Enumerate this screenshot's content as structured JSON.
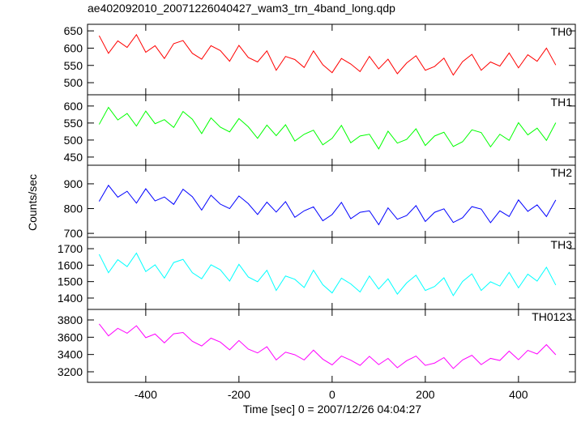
{
  "title": "ae402092010_20071226040427_wam3_trn_4band_long.qdp",
  "xlabel": "Time [sec] 0 = 2007/12/26 04:04:27",
  "ylabel": "Counts/sec",
  "chart_data": [
    {
      "type": "line",
      "xlim": [
        -525,
        522
      ],
      "xticks": [
        -400,
        -200,
        0,
        200,
        400
      ],
      "ylim": [
        465,
        669
      ],
      "yticks": [
        500,
        550,
        600,
        650
      ],
      "x": [
        -500,
        -480,
        -460,
        -440,
        -420,
        -400,
        -380,
        -360,
        -340,
        -320,
        -300,
        -280,
        -260,
        -240,
        -220,
        -200,
        -180,
        -160,
        -140,
        -120,
        -100,
        -80,
        -60,
        -40,
        -20,
        0,
        20,
        40,
        60,
        80,
        100,
        120,
        140,
        160,
        180,
        200,
        220,
        240,
        260,
        280,
        300,
        320,
        340,
        360,
        380,
        400,
        420,
        440,
        460,
        480
      ],
      "series": [
        {
          "name": "TH0",
          "color": "#ff0000",
          "values": [
            636,
            585,
            621,
            602,
            639,
            588,
            607,
            570,
            613,
            622,
            585,
            568,
            607,
            593,
            562,
            608,
            573,
            560,
            592,
            536,
            576,
            567,
            544,
            592,
            552,
            529,
            570,
            554,
            532,
            576,
            540,
            568,
            526,
            557,
            578,
            536,
            547,
            571,
            522,
            561,
            582,
            536,
            560,
            548,
            586,
            543,
            581,
            562,
            600,
            551
          ]
        }
      ]
    },
    {
      "type": "line",
      "xlim": [
        -525,
        522
      ],
      "xticks": [
        -400,
        -200,
        0,
        200,
        400
      ],
      "ylim": [
        426,
        633
      ],
      "yticks": [
        450,
        500,
        550,
        600
      ],
      "x": [
        -500,
        -480,
        -460,
        -440,
        -420,
        -400,
        -380,
        -360,
        -340,
        -320,
        -300,
        -280,
        -260,
        -240,
        -220,
        -200,
        -180,
        -160,
        -140,
        -120,
        -100,
        -80,
        -60,
        -40,
        -20,
        0,
        20,
        40,
        60,
        80,
        100,
        120,
        140,
        160,
        180,
        200,
        220,
        240,
        260,
        280,
        300,
        320,
        340,
        360,
        380,
        400,
        420,
        440,
        460,
        480
      ],
      "series": [
        {
          "name": "TH1",
          "color": "#00ff00",
          "values": [
            546,
            596,
            559,
            578,
            541,
            585,
            548,
            560,
            537,
            584,
            561,
            519,
            565,
            538,
            524,
            563,
            539,
            505,
            544,
            513,
            545,
            497,
            517,
            529,
            486,
            505,
            543,
            492,
            512,
            517,
            474,
            526,
            491,
            502,
            533,
            484,
            512,
            523,
            481,
            495,
            530,
            522,
            480,
            517,
            499,
            551,
            515,
            535,
            499,
            551
          ]
        }
      ]
    },
    {
      "type": "line",
      "xlim": [
        -525,
        522
      ],
      "xticks": [
        -400,
        -200,
        0,
        200,
        400
      ],
      "ylim": [
        684,
        975
      ],
      "yticks": [
        700,
        800,
        900
      ],
      "x": [
        -500,
        -480,
        -460,
        -440,
        -420,
        -400,
        -380,
        -360,
        -340,
        -320,
        -300,
        -280,
        -260,
        -240,
        -220,
        -200,
        -180,
        -160,
        -140,
        -120,
        -100,
        -80,
        -60,
        -40,
        -20,
        0,
        20,
        40,
        60,
        80,
        100,
        120,
        140,
        160,
        180,
        200,
        220,
        240,
        260,
        280,
        300,
        320,
        340,
        360,
        380,
        400,
        420,
        440,
        460,
        480
      ],
      "series": [
        {
          "name": "TH2",
          "color": "#0000ff",
          "values": [
            829,
            894,
            846,
            870,
            822,
            880,
            831,
            847,
            817,
            878,
            848,
            794,
            854,
            818,
            800,
            851,
            820,
            776,
            826,
            786,
            828,
            765,
            791,
            807,
            751,
            776,
            825,
            759,
            785,
            791,
            735,
            803,
            757,
            772,
            812,
            748,
            785,
            799,
            744,
            763,
            808,
            798,
            743,
            791,
            768,
            835,
            789,
            815,
            768,
            835
          ]
        }
      ]
    },
    {
      "type": "line",
      "xlim": [
        -525,
        522
      ],
      "xticks": [
        -400,
        -200,
        0,
        200,
        400
      ],
      "ylim": [
        1331,
        1769
      ],
      "yticks": [
        1400,
        1500,
        1600,
        1700
      ],
      "x": [
        -500,
        -480,
        -460,
        -440,
        -420,
        -400,
        -380,
        -360,
        -340,
        -320,
        -300,
        -280,
        -260,
        -240,
        -220,
        -200,
        -180,
        -160,
        -140,
        -120,
        -100,
        -80,
        -60,
        -40,
        -20,
        0,
        20,
        40,
        60,
        80,
        100,
        120,
        140,
        160,
        180,
        200,
        220,
        240,
        260,
        280,
        300,
        320,
        340,
        360,
        380,
        400,
        420,
        440,
        460,
        480
      ],
      "series": [
        {
          "name": "TH3",
          "color": "#00ffff",
          "values": [
            1666,
            1554,
            1633,
            1591,
            1673,
            1561,
            1602,
            1521,
            1616,
            1635,
            1554,
            1517,
            1602,
            1572,
            1503,
            1605,
            1528,
            1499,
            1569,
            1446,
            1534,
            1514,
            1464,
            1569,
            1481,
            1431,
            1521,
            1486,
            1437,
            1534,
            1455,
            1517,
            1424,
            1492,
            1539,
            1446,
            1470,
            1523,
            1415,
            1501,
            1547,
            1446,
            1499,
            1473,
            1556,
            1462,
            1545,
            1503,
            1587,
            1479
          ]
        }
      ]
    },
    {
      "type": "line",
      "xlim": [
        -525,
        522
      ],
      "xticks": [
        -400,
        -200,
        0,
        200,
        400
      ],
      "ylim": [
        3078,
        3922
      ],
      "yticks": [
        3200,
        3400,
        3600,
        3800
      ],
      "x": [
        -500,
        -480,
        -460,
        -440,
        -420,
        -400,
        -380,
        -360,
        -340,
        -320,
        -300,
        -280,
        -260,
        -240,
        -220,
        -200,
        -180,
        -160,
        -140,
        -120,
        -100,
        -80,
        -60,
        -40,
        -20,
        0,
        20,
        40,
        60,
        80,
        100,
        120,
        140,
        160,
        180,
        200,
        220,
        240,
        260,
        280,
        300,
        320,
        340,
        360,
        380,
        400,
        420,
        440,
        460,
        480
      ],
      "series": [
        {
          "name": "TH0123",
          "color": "#ff00ff",
          "values": [
            3754,
            3616,
            3703,
            3646,
            3733,
            3595,
            3637,
            3535,
            3640,
            3655,
            3553,
            3499,
            3589,
            3544,
            3454,
            3562,
            3463,
            3418,
            3490,
            3337,
            3427,
            3397,
            3337,
            3451,
            3346,
            3280,
            3382,
            3334,
            3274,
            3379,
            3283,
            3355,
            3247,
            3328,
            3382,
            3274,
            3301,
            3364,
            3238,
            3337,
            3391,
            3283,
            3355,
            3331,
            3439,
            3340,
            3448,
            3406,
            3514,
            3397
          ]
        }
      ]
    }
  ]
}
